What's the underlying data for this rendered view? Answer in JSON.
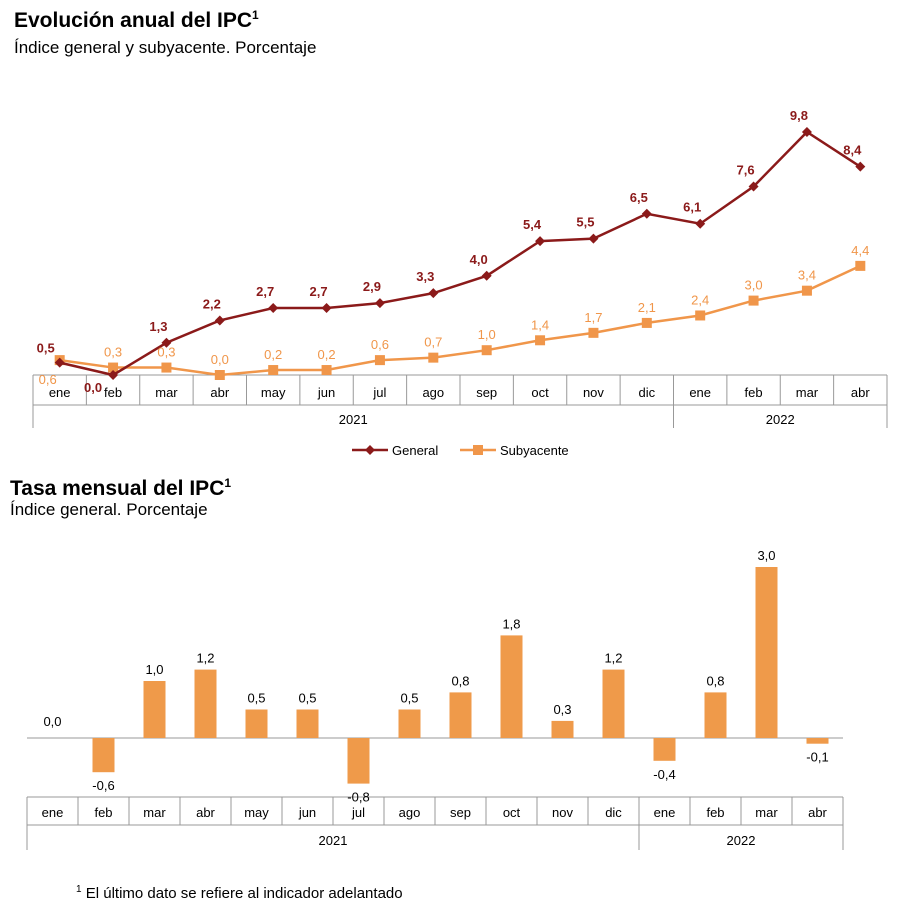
{
  "colors": {
    "general": "#8b1a1a",
    "subyacente": "#f0964a",
    "bar": "#ef9a4a",
    "axis": "#999999"
  },
  "chart_data": [
    {
      "type": "line",
      "title": "Evolución anual del IPC",
      "title_sup": "1",
      "subtitle": "Índice general y subyacente. Porcentaje",
      "categories": [
        "ene",
        "feb",
        "mar",
        "abr",
        "may",
        "jun",
        "jul",
        "ago",
        "sep",
        "oct",
        "nov",
        "dic",
        "ene",
        "feb",
        "mar",
        "abr"
      ],
      "years": [
        {
          "label": "2021",
          "from": 0,
          "to": 11
        },
        {
          "label": "2022",
          "from": 12,
          "to": 15
        }
      ],
      "series": [
        {
          "name": "General",
          "values": [
            0.5,
            0.0,
            1.3,
            2.2,
            2.7,
            2.7,
            2.9,
            3.3,
            4.0,
            5.4,
            5.5,
            6.5,
            6.1,
            7.6,
            9.8,
            8.4
          ],
          "labels": [
            "0,5",
            "0,0",
            "1,3",
            "2,2",
            "2,7",
            "2,7",
            "2,9",
            "3,3",
            "4,0",
            "5,4",
            "5,5",
            "6,5",
            "6,1",
            "7,6",
            "9,8",
            "8,4"
          ]
        },
        {
          "name": "Subyacente",
          "values": [
            0.6,
            0.3,
            0.3,
            0.0,
            0.2,
            0.2,
            0.6,
            0.7,
            1.0,
            1.4,
            1.7,
            2.1,
            2.4,
            3.0,
            3.4,
            4.4
          ],
          "labels": [
            "0,6",
            "0,3",
            "0,3",
            "0,0",
            "0,2",
            "0,2",
            "0,6",
            "0,7",
            "1,0",
            "1,4",
            "1,7",
            "2,1",
            "2,4",
            "3,0",
            "3,4",
            "4,4"
          ]
        }
      ],
      "legend": "bottom"
    },
    {
      "type": "bar",
      "title": "Tasa mensual del IPC",
      "title_sup": "1",
      "subtitle": "Índice general. Porcentaje",
      "categories": [
        "ene",
        "feb",
        "mar",
        "abr",
        "may",
        "jun",
        "jul",
        "ago",
        "sep",
        "oct",
        "nov",
        "dic",
        "ene",
        "feb",
        "mar",
        "abr"
      ],
      "years": [
        {
          "label": "2021",
          "from": 0,
          "to": 11
        },
        {
          "label": "2022",
          "from": 12,
          "to": 15
        }
      ],
      "values": [
        0.0,
        -0.6,
        1.0,
        1.2,
        0.5,
        0.5,
        -0.8,
        0.5,
        0.8,
        1.8,
        0.3,
        1.2,
        -0.4,
        0.8,
        3.0,
        -0.1
      ],
      "labels": [
        "0,0",
        "-0,6",
        "1,0",
        "1,2",
        "0,5",
        "0,5",
        "-0,8",
        "0,5",
        "0,8",
        "1,8",
        "0,3",
        "1,2",
        "-0,4",
        "0,8",
        "3,0",
        "-0,1"
      ]
    }
  ],
  "footnote": {
    "sup": "1",
    "text": "El último dato se refiere al indicador adelantado"
  }
}
